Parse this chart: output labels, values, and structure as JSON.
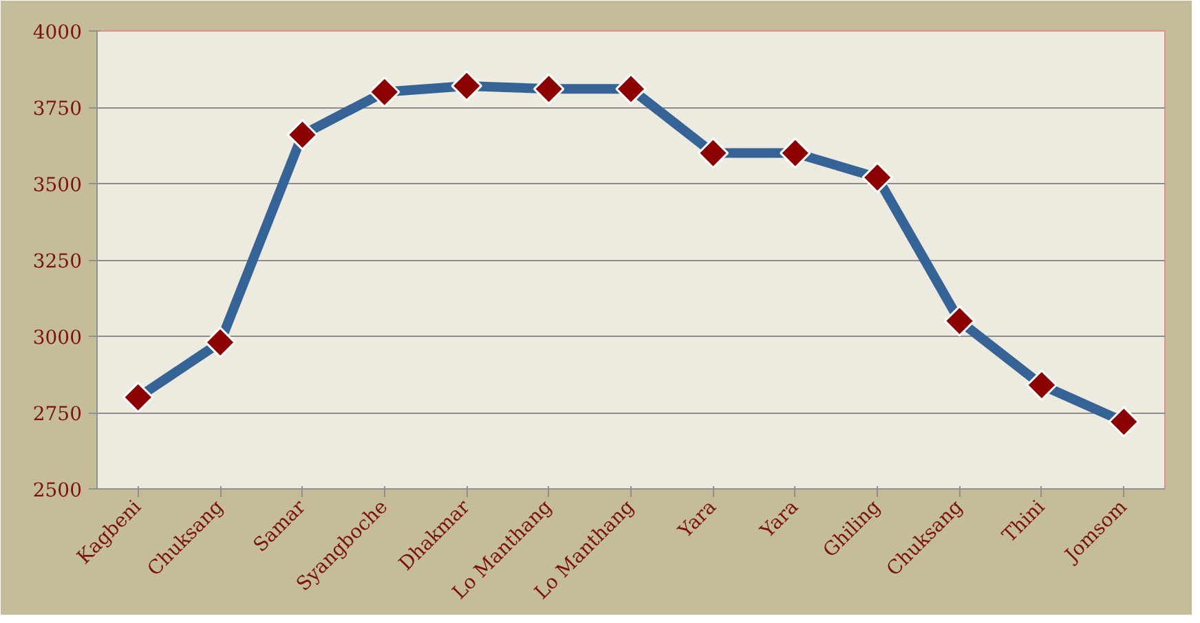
{
  "chart_data": {
    "type": "line",
    "categories": [
      "Kagbeni",
      "Chuksang",
      "Samar",
      "Syangboche",
      "Dhakmar",
      "Lo Manthang",
      "Lo Manthang",
      "Yara",
      "Yara",
      "Ghiling",
      "Chuksang",
      "Thini",
      "Jomsom"
    ],
    "series": [
      {
        "color": "#356395",
        "values": [
          2800,
          2980,
          3660,
          3800,
          3820,
          3810,
          3810,
          3600,
          3600,
          3520,
          3050,
          2840,
          2720
        ]
      }
    ],
    "ylim": [
      2500,
      4000
    ],
    "yticks": [
      2500,
      2750,
      3000,
      3250,
      3500,
      3750,
      4000
    ],
    "grid": "y",
    "marker": "diamond",
    "line_style": "solid"
  }
}
